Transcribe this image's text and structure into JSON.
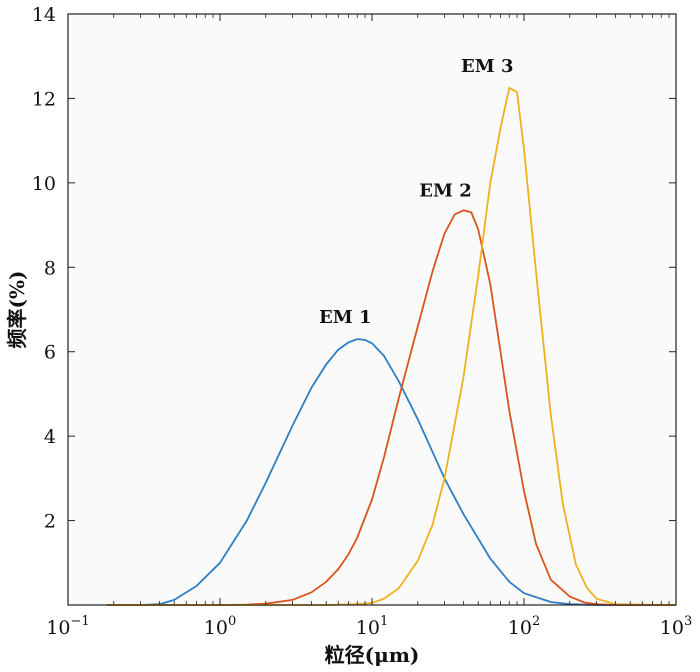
{
  "chart_data": {
    "type": "line",
    "xlabel": "粒径(μm)",
    "ylabel": "频率(%)",
    "x_scale": "log",
    "xlim": [
      0.1,
      1000
    ],
    "ylim": [
      0,
      14
    ],
    "grid": false,
    "x_ticks": [
      {
        "value": 0.1,
        "base": "10",
        "exp": "−1"
      },
      {
        "value": 1,
        "base": "10",
        "exp": "0"
      },
      {
        "value": 10,
        "base": "10",
        "exp": "1"
      },
      {
        "value": 100,
        "base": "10",
        "exp": "2"
      },
      {
        "value": 1000,
        "base": "10",
        "exp": "3"
      }
    ],
    "y_ticks": [
      {
        "value": 2,
        "label": "2"
      },
      {
        "value": 4,
        "label": "4"
      },
      {
        "value": 6,
        "label": "6"
      },
      {
        "value": 8,
        "label": "8"
      },
      {
        "value": 10,
        "label": "10"
      },
      {
        "value": 12,
        "label": "12"
      },
      {
        "value": 14,
        "label": "14"
      }
    ],
    "series": [
      {
        "name": "EM 1",
        "color": "#2e7ec4",
        "x": [
          0.18,
          0.3,
          0.4,
          0.5,
          0.7,
          1.0,
          1.5,
          2.0,
          3.0,
          4.0,
          5.0,
          6.0,
          7.0,
          8.0,
          9.0,
          10.0,
          12.0,
          15.0,
          20.0,
          30.0,
          40.0,
          60.0,
          80.0,
          100,
          150,
          200,
          300,
          500,
          1000
        ],
        "values": [
          0,
          0,
          0.02,
          0.12,
          0.45,
          1.0,
          2.0,
          2.9,
          4.25,
          5.15,
          5.7,
          6.05,
          6.22,
          6.3,
          6.28,
          6.2,
          5.9,
          5.3,
          4.4,
          3.0,
          2.15,
          1.1,
          0.55,
          0.28,
          0.07,
          0.02,
          0,
          0,
          0
        ]
      },
      {
        "name": "EM 2",
        "color": "#d9541c",
        "x": [
          0.18,
          1.0,
          1.5,
          2.0,
          3.0,
          4.0,
          5.0,
          6.0,
          7.0,
          8.0,
          10.0,
          12.0,
          15.0,
          20.0,
          25.0,
          30.0,
          35.0,
          40.0,
          45.0,
          50.0,
          60.0,
          70.0,
          80.0,
          100,
          120,
          150,
          200,
          250,
          300,
          400,
          1000
        ],
        "values": [
          0,
          0,
          0.01,
          0.03,
          0.12,
          0.3,
          0.55,
          0.85,
          1.2,
          1.6,
          2.5,
          3.5,
          4.9,
          6.6,
          7.9,
          8.8,
          9.25,
          9.35,
          9.3,
          8.9,
          7.6,
          6.0,
          4.6,
          2.7,
          1.45,
          0.6,
          0.2,
          0.06,
          0.02,
          0,
          0
        ]
      },
      {
        "name": "EM 3",
        "color": "#f0b020",
        "x": [
          0.18,
          5.0,
          8.0,
          10.0,
          12.0,
          15.0,
          20.0,
          25.0,
          30.0,
          40.0,
          50.0,
          60.0,
          70.0,
          80.0,
          90.0,
          100,
          120,
          150,
          180,
          220,
          260,
          300,
          400,
          1000
        ],
        "values": [
          0,
          0,
          0.02,
          0.05,
          0.15,
          0.4,
          1.05,
          1.9,
          3.0,
          5.4,
          7.8,
          10.0,
          11.3,
          12.25,
          12.15,
          10.8,
          7.9,
          4.5,
          2.4,
          0.95,
          0.4,
          0.15,
          0.02,
          0
        ]
      }
    ]
  }
}
